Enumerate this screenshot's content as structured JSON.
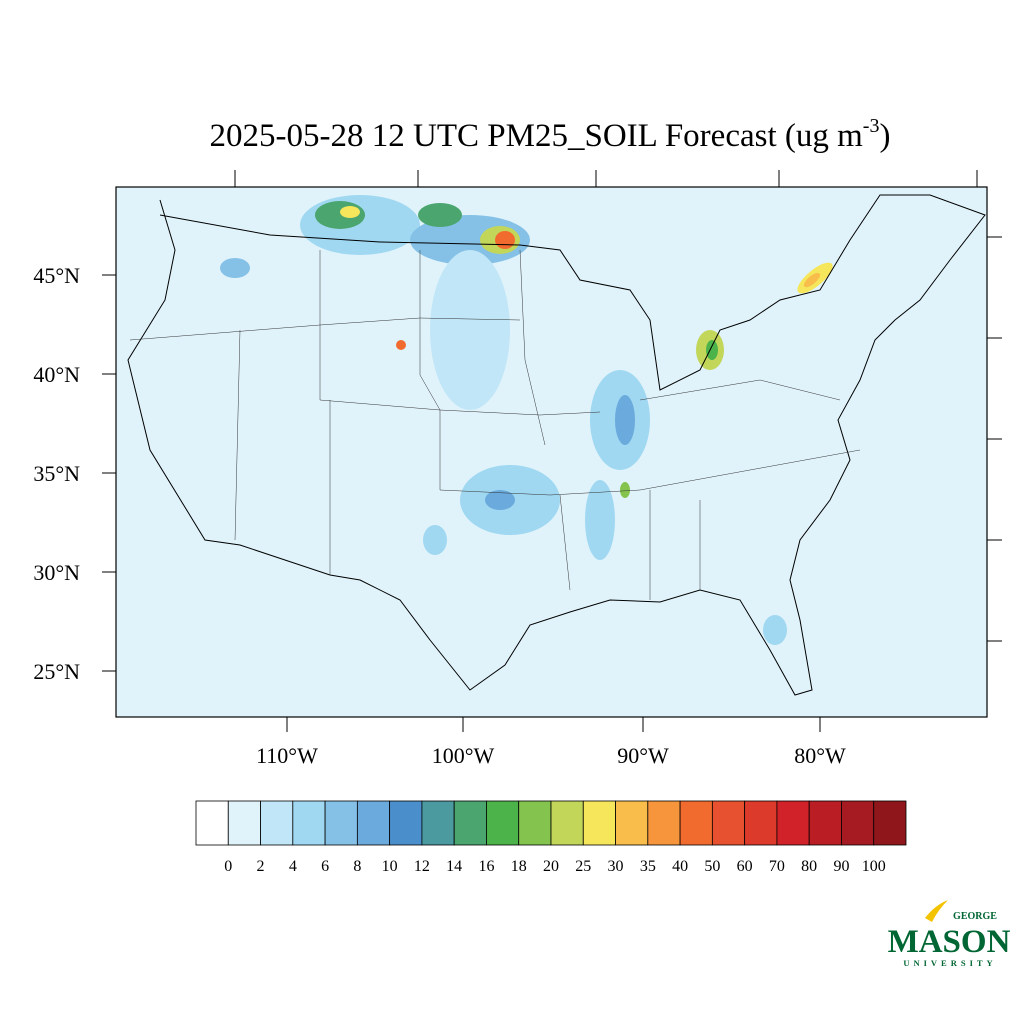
{
  "title": {
    "text": "2025-05-28 12 UTC PM25_SOIL Forecast (ug m",
    "superscript": "-3",
    "suffix": ")"
  },
  "map": {
    "lat_labels": [
      "45°N",
      "40°N",
      "35°N",
      "30°N",
      "25°N"
    ],
    "lon_labels": [
      "110°W",
      "100°W",
      "90°W",
      "80°W"
    ]
  },
  "colorbar": {
    "levels": [
      0,
      2,
      4,
      6,
      8,
      10,
      12,
      14,
      16,
      18,
      20,
      25,
      30,
      35,
      40,
      50,
      60,
      70,
      80,
      90,
      100
    ],
    "colors": [
      "#ffffff",
      "#e0f3fb",
      "#c0e6f7",
      "#a0d8f2",
      "#85c1e6",
      "#6aaadc",
      "#4a8fcc",
      "#4a9a9f",
      "#4aa56e",
      "#4cb34a",
      "#84c44e",
      "#c2d65a",
      "#f6e65c",
      "#f8bd4a",
      "#f7953c",
      "#f26b2e",
      "#e85130",
      "#dc3a2a",
      "#d12129",
      "#bb1d25",
      "#a61b21",
      "#8f171b"
    ]
  },
  "logo": {
    "top": "GEORGE",
    "main": "MASON",
    "bottom": "UNIVERSITY"
  }
}
